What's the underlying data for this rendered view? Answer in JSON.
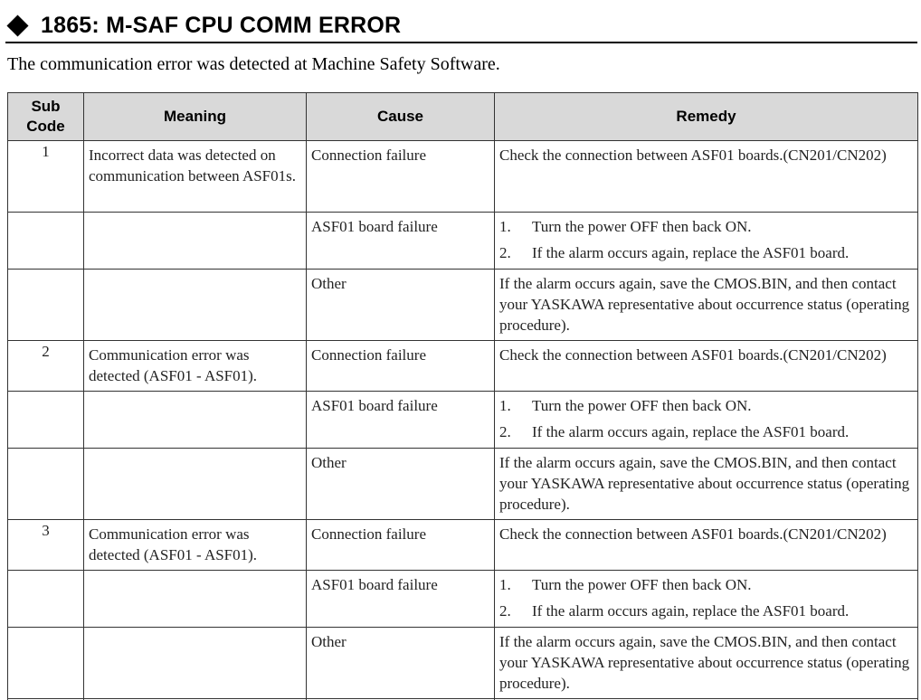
{
  "header": {
    "title": "1865: M-SAF CPU COMM ERROR"
  },
  "intro": "The communication error was detected at Machine Safety Software.",
  "table": {
    "columns": {
      "sub_code": "Sub Code",
      "meaning": "Meaning",
      "cause": "Cause",
      "remedy": "Remedy"
    },
    "rows": [
      {
        "sub": "1",
        "meaning": "Incorrect data was detected on communication between ASF01s.",
        "cause": "Connection failure",
        "remedy": "Check the connection between ASF01 boards.(CN201/CN202)"
      },
      {
        "sub": "",
        "meaning": "",
        "cause": "ASF01 board failure",
        "steps": [
          {
            "num": "1.",
            "text": "Turn the power OFF then back ON."
          },
          {
            "num": "2.",
            "text": "If the alarm occurs again, replace the ASF01 board."
          }
        ]
      },
      {
        "sub": "",
        "meaning": "",
        "cause": "Other",
        "remedy": "If the alarm occurs again, save the CMOS.BIN, and then contact your YASKAWA representative about occurrence status (operating procedure)."
      },
      {
        "sub": "2",
        "meaning": "Communication error was detected (ASF01 - ASF01).",
        "cause": "Connection failure",
        "remedy": "Check the connection between ASF01 boards.(CN201/CN202)"
      },
      {
        "sub": "",
        "meaning": "",
        "cause": "ASF01 board failure",
        "steps": [
          {
            "num": "1.",
            "text": "Turn the power OFF then back ON."
          },
          {
            "num": "2.",
            "text": "If the alarm occurs again, replace the ASF01 board."
          }
        ]
      },
      {
        "sub": "",
        "meaning": "",
        "cause": "Other",
        "remedy": "If the alarm occurs again, save the CMOS.BIN, and then contact your YASKAWA representative about occurrence status (operating procedure)."
      },
      {
        "sub": "3",
        "meaning": "Communication error was detected (ASF01 - ASF01).",
        "cause": "Connection failure",
        "remedy": "Check the connection between ASF01 boards.(CN201/CN202)"
      },
      {
        "sub": "",
        "meaning": "",
        "cause": "ASF01 board failure",
        "steps": [
          {
            "num": "1.",
            "text": "Turn the power OFF then back ON."
          },
          {
            "num": "2.",
            "text": "If the alarm occurs again, replace the ASF01 board."
          }
        ]
      },
      {
        "sub": "",
        "meaning": "",
        "cause": "Other",
        "remedy": "If the alarm occurs again, save the CMOS.BIN, and then contact your YASKAWA representative about occurrence status (operating procedure)."
      }
    ]
  }
}
